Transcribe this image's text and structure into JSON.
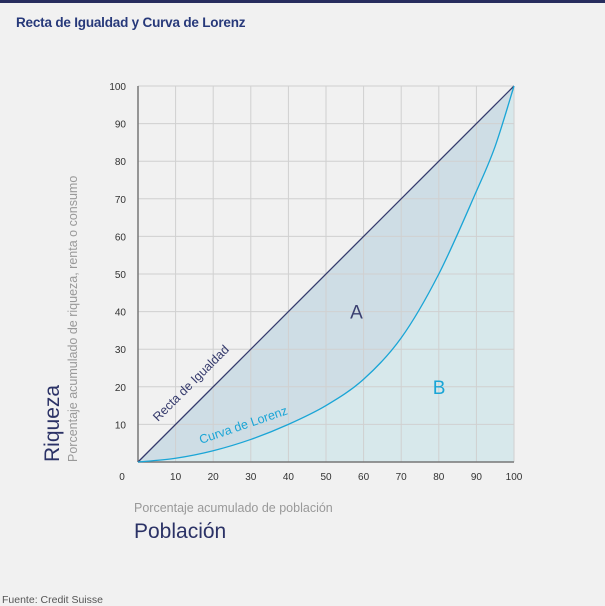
{
  "header": {
    "title": "Recta de Igualdad y Curva de Lorenz"
  },
  "footer": {
    "source": "Fuente: Credit Suisse"
  },
  "chart_data": {
    "type": "line",
    "title": "Recta de Igualdad y Curva de Lorenz",
    "xlabel": "Población",
    "xsublabel": "Porcentaje acumulado de población",
    "ylabel": "Riqueza",
    "ysublabel": "Porcentaje acumulado de riqueza, renta o consumo",
    "xlim": [
      0,
      100
    ],
    "ylim": [
      0,
      100
    ],
    "grid": true,
    "xticks": [
      "0",
      "10",
      "20",
      "30",
      "40",
      "50",
      "60",
      "70",
      "80",
      "90",
      "100"
    ],
    "yticks": [
      "10",
      "20",
      "30",
      "40",
      "50",
      "60",
      "70",
      "80",
      "90",
      "100"
    ],
    "series": [
      {
        "name": "Recta de Igualdad",
        "color": "#353a6c",
        "x": [
          0,
          100
        ],
        "y": [
          0,
          100
        ]
      },
      {
        "name": "Curva de Lorenz",
        "color": "#1aa5d6",
        "x": [
          0,
          10,
          20,
          30,
          40,
          50,
          60,
          70,
          80,
          90,
          95,
          100
        ],
        "y": [
          0,
          1,
          3,
          6,
          10,
          15,
          22,
          33,
          50,
          72,
          84,
          100
        ]
      }
    ],
    "annotations": [
      {
        "text": "A",
        "x": 58,
        "y": 40,
        "color": "#3a3f70"
      },
      {
        "text": "B",
        "x": 80,
        "y": 20,
        "color": "#1aa5d6"
      }
    ],
    "fills": {
      "A": "#cbdbe4",
      "B": "#d4e7ea"
    }
  }
}
